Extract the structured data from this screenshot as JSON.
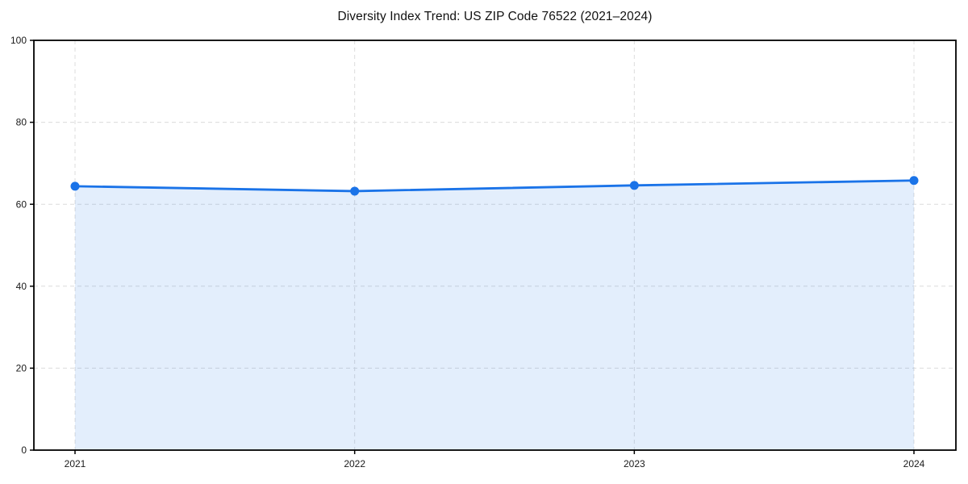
{
  "chart_data": {
    "type": "area",
    "title": "Diversity Index Trend: US ZIP Code 76522 (2021–2024)",
    "categories": [
      "2021",
      "2022",
      "2023",
      "2024"
    ],
    "series": [
      {
        "name": "Diversity Index",
        "values": [
          64.4,
          63.2,
          64.6,
          65.8
        ]
      }
    ],
    "xlabel": "",
    "ylabel": "",
    "ylim": [
      0,
      100
    ],
    "yticks": [
      0,
      20,
      40,
      60,
      80,
      100
    ],
    "grid": true,
    "grid_style": "dashed",
    "legend": "none",
    "colors": {
      "line": "#1a73e8",
      "marker": "#1a73e8",
      "area_fill": "rgba(26,115,232,0.12)",
      "grid": "#dcdcdc",
      "frame": "#000000",
      "tick_text": "#1a1a1a",
      "background": "#ffffff"
    }
  }
}
